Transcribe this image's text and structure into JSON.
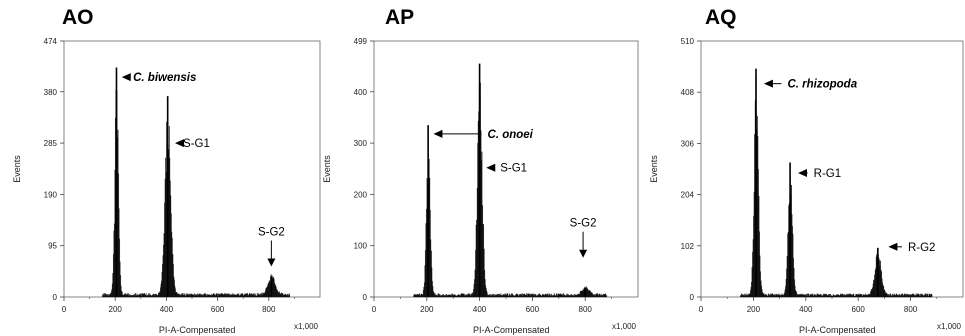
{
  "chart_data": [
    {
      "type": "histogram",
      "panel_label": "AO",
      "xlabel": "PI-A-Compensated",
      "x_multiplier": "x1,000",
      "ylabel": "Events",
      "xlim": [
        0,
        1000
      ],
      "ylim": [
        0,
        474
      ],
      "xticks": [
        0,
        200,
        400,
        600,
        800
      ],
      "yticks": [
        0,
        95,
        190,
        285,
        380,
        474
      ],
      "peaks": [
        {
          "x": 205,
          "height": 425,
          "width": 7
        },
        {
          "x": 405,
          "height": 372,
          "width": 11
        },
        {
          "x": 810,
          "height": 38,
          "width": 14
        }
      ],
      "annotations": [
        {
          "label": "C. biwensis",
          "italic": true,
          "peak_x": 210,
          "y": 407,
          "text_x": 270
        },
        {
          "label": "S-G1",
          "italic": false,
          "peak_x": 418,
          "y": 285,
          "text_x": 465
        },
        {
          "label": "S-G2",
          "italic": false,
          "peak_x": 810,
          "y": 112,
          "text_x": 790,
          "vertical": true
        }
      ]
    },
    {
      "type": "histogram",
      "panel_label": "AP",
      "xlabel": "PI-A-Compensated",
      "x_multiplier": "x1,000",
      "ylabel": "Events",
      "xlim": [
        0,
        1000
      ],
      "ylim": [
        0,
        499
      ],
      "xticks": [
        0,
        200,
        400,
        600,
        800
      ],
      "yticks": [
        0,
        100,
        200,
        300,
        400,
        499
      ],
      "peaks": [
        {
          "x": 205,
          "height": 335,
          "width": 7
        },
        {
          "x": 400,
          "height": 455,
          "width": 9
        },
        {
          "x": 800,
          "height": 18,
          "width": 12
        }
      ],
      "annotations": [
        {
          "label": "C. onoei",
          "italic": true,
          "peak_x": 210,
          "y": 318,
          "text_x": 430
        },
        {
          "label": "S-G1",
          "italic": false,
          "peak_x": 410,
          "y": 252,
          "text_x": 478
        },
        {
          "label": "S-G2",
          "italic": false,
          "peak_x": 792,
          "y": 135,
          "text_x": 778,
          "vertical": true
        }
      ]
    },
    {
      "type": "histogram",
      "panel_label": "AQ",
      "xlabel": "PI-A-Compensated",
      "x_multiplier": "x1,000",
      "ylabel": "Events",
      "xlim": [
        0,
        1000
      ],
      "ylim": [
        0,
        510
      ],
      "xticks": [
        0,
        200,
        400,
        600,
        800
      ],
      "yticks": [
        0,
        102,
        204,
        306,
        408,
        510
      ],
      "peaks": [
        {
          "x": 210,
          "height": 455,
          "width": 8
        },
        {
          "x": 340,
          "height": 268,
          "width": 8
        },
        {
          "x": 675,
          "height": 98,
          "width": 12
        }
      ],
      "annotations": [
        {
          "label": "C. rhizopoda",
          "italic": true,
          "peak_x": 225,
          "y": 425,
          "text_x": 330
        },
        {
          "label": "R-G1",
          "italic": false,
          "peak_x": 355,
          "y": 247,
          "text_x": 430
        },
        {
          "label": "R-G2",
          "italic": false,
          "peak_x": 700,
          "y": 100,
          "text_x": 790
        }
      ]
    }
  ]
}
